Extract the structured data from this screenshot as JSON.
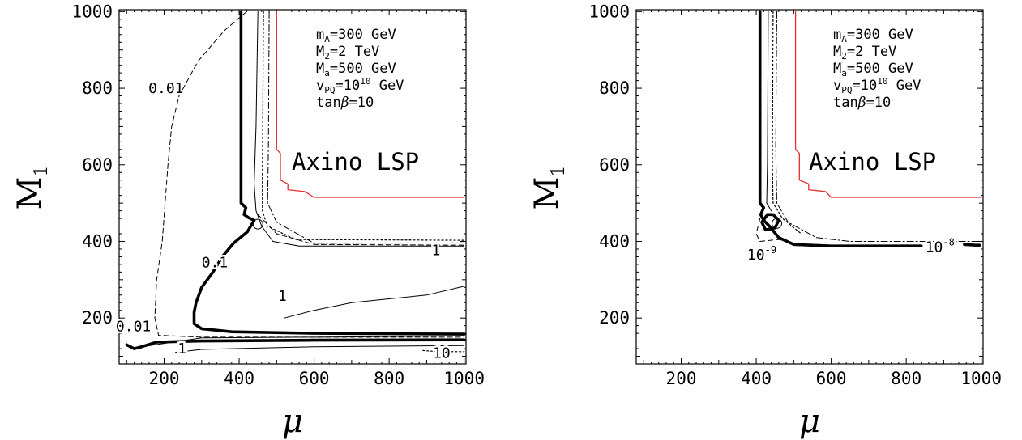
{
  "chart_data": [
    {
      "type": "line",
      "panel": "left",
      "xlabel": "μ",
      "ylabel": "M",
      "ylabel_sub": "1",
      "xlim": [
        80,
        1005
      ],
      "ylim": [
        80,
        1005
      ],
      "xticks": [
        200,
        400,
        600,
        800,
        1000
      ],
      "yticks": [
        200,
        400,
        600,
        800,
        1000
      ],
      "grid": false,
      "annotations": {
        "params": [
          {
            "base": "m",
            "sub": "A",
            "sup": "",
            "rest": "=300 GeV"
          },
          {
            "base": "M",
            "sub": "2",
            "sup": "",
            "rest": "=2 TeV"
          },
          {
            "base": "M",
            "sub": "ã",
            "sup": "",
            "rest": "=500 GeV"
          },
          {
            "base": "v",
            "sub": "PQ",
            "sup": "",
            "rest": "=10^10 GeV"
          },
          {
            "base": "tan",
            "sub": "",
            "sup": "",
            "rest": "β=10"
          }
        ],
        "region_label": "Axino LSP"
      },
      "series": [
        {
          "style": "red",
          "points": [
            [
              500,
              1000
            ],
            [
              500,
              640
            ],
            [
              510,
              630
            ],
            [
              510,
              560
            ],
            [
              530,
              550
            ],
            [
              530,
              535
            ],
            [
              575,
              530
            ],
            [
              600,
              515
            ],
            [
              1000,
              515
            ]
          ]
        },
        {
          "style": "thick",
          "points": [
            [
              405,
              1000
            ],
            [
              405,
              500
            ],
            [
              418,
              488
            ],
            [
              413,
              470
            ],
            [
              425,
              462
            ],
            [
              440,
              455
            ],
            [
              422,
              425
            ],
            [
              385,
              395
            ],
            [
              355,
              360
            ],
            [
              330,
              320
            ],
            [
              300,
              280
            ],
            [
              285,
              240
            ],
            [
              280,
              215
            ],
            [
              280,
              185
            ],
            [
              300,
              172
            ],
            [
              380,
              164
            ],
            [
              600,
              160
            ],
            [
              1000,
              158
            ]
          ]
        },
        {
          "style": "thick",
          "points": [
            [
              100,
              130
            ],
            [
              120,
              120
            ],
            [
              140,
              125
            ],
            [
              180,
              137
            ],
            [
              300,
              140
            ],
            [
              600,
              142
            ],
            [
              1000,
              143
            ]
          ]
        },
        {
          "style": "thin",
          "points": [
            [
              450,
              1000
            ],
            [
              445,
              700
            ],
            [
              440,
              550
            ],
            [
              445,
              480
            ],
            [
              460,
              440
            ],
            [
              490,
              400
            ],
            [
              560,
              388
            ],
            [
              1000,
              388
            ]
          ]
        },
        {
          "style": "thin",
          "points": [
            [
              520,
              200
            ],
            [
              600,
              220
            ],
            [
              700,
              240
            ],
            [
              800,
              250
            ],
            [
              900,
              260
            ],
            [
              1000,
              283
            ]
          ]
        },
        {
          "style": "thin",
          "points": [
            [
              140,
              125
            ],
            [
              300,
              148
            ],
            [
              600,
              150
            ],
            [
              1000,
              153
            ]
          ]
        },
        {
          "style": "thin",
          "points": [
            [
              230,
              110
            ],
            [
              300,
              118
            ],
            [
              600,
              125
            ],
            [
              1000,
              128
            ]
          ]
        },
        {
          "style": "dashed",
          "points": [
            [
              420,
              1000
            ],
            [
              360,
              950
            ],
            [
              290,
              870
            ],
            [
              240,
              780
            ],
            [
              220,
              700
            ],
            [
              210,
              600
            ],
            [
              195,
              400
            ],
            [
              180,
              300
            ],
            [
              175,
              200
            ],
            [
              185,
              155
            ],
            [
              300,
              150
            ],
            [
              1000,
              150
            ]
          ]
        },
        {
          "style": "dashed",
          "points": [
            [
              450,
              470
            ],
            [
              500,
              420
            ],
            [
              600,
              392
            ],
            [
              1000,
              390
            ]
          ]
        },
        {
          "style": "dotted",
          "points": [
            [
              465,
              1000
            ],
            [
              462,
              600
            ],
            [
              462,
              480
            ],
            [
              475,
              440
            ],
            [
              550,
              405
            ],
            [
              1000,
              403
            ]
          ]
        },
        {
          "style": "dotted",
          "points": [
            [
              890,
              115
            ],
            [
              930,
              112
            ],
            [
              1000,
              112
            ]
          ]
        },
        {
          "style": "dashdot",
          "points": [
            [
              480,
              1000
            ],
            [
              478,
              650
            ],
            [
              476,
              500
            ],
            [
              500,
              450
            ],
            [
              600,
              395
            ],
            [
              1000,
              396
            ]
          ]
        }
      ],
      "contour_labels": [
        {
          "text": "0.01",
          "x": 205,
          "y": 800
        },
        {
          "text": "0.1",
          "x": 335,
          "y": 345
        },
        {
          "text": "0.01",
          "x": 118,
          "y": 178
        },
        {
          "text": "1",
          "x": 515,
          "y": 257
        },
        {
          "text": "1",
          "x": 248,
          "y": 120
        },
        {
          "text": "1",
          "x": 925,
          "y": 377
        },
        {
          "text": "10",
          "x": 940,
          "y": 109
        }
      ]
    },
    {
      "type": "line",
      "panel": "right",
      "xlabel": "μ",
      "ylabel": "M",
      "ylabel_sub": "1",
      "xlim": [
        80,
        1005
      ],
      "ylim": [
        80,
        1005
      ],
      "xticks": [
        200,
        400,
        600,
        800,
        1000
      ],
      "yticks": [
        200,
        400,
        600,
        800,
        1000
      ],
      "grid": false,
      "annotations": {
        "params": [
          {
            "base": "m",
            "sub": "A",
            "sup": "",
            "rest": "=300 GeV"
          },
          {
            "base": "M",
            "sub": "2",
            "sup": "",
            "rest": "=2 TeV"
          },
          {
            "base": "M",
            "sub": "ã",
            "sup": "",
            "rest": "=500 GeV"
          },
          {
            "base": "v",
            "sub": "PQ",
            "sup": "",
            "rest": "=10^10 GeV"
          },
          {
            "base": "tan",
            "sub": "",
            "sup": "",
            "rest": "β=10"
          }
        ],
        "region_label": "Axino LSP"
      },
      "series": [
        {
          "style": "red",
          "points": [
            [
              505,
              1000
            ],
            [
              505,
              640
            ],
            [
              515,
              630
            ],
            [
              515,
              560
            ],
            [
              540,
              550
            ],
            [
              540,
              535
            ],
            [
              585,
              530
            ],
            [
              600,
              515
            ],
            [
              1000,
              515
            ]
          ]
        },
        {
          "style": "thick",
          "points": [
            [
              410,
              1000
            ],
            [
              410,
              500
            ],
            [
              420,
              488
            ],
            [
              412,
              470
            ],
            [
              420,
              455
            ],
            [
              435,
              440
            ],
            [
              460,
              410
            ],
            [
              500,
              392
            ],
            [
              600,
              388
            ],
            [
              840,
              388
            ]
          ]
        },
        {
          "style": "thick",
          "points": [
            [
              430,
              470
            ],
            [
              415,
              450
            ],
            [
              425,
              430
            ],
            [
              450,
              435
            ],
            [
              460,
              455
            ],
            [
              445,
              470
            ],
            [
              430,
              470
            ]
          ]
        },
        {
          "style": "thick",
          "points": [
            [
              955,
              392
            ],
            [
              985,
              390
            ],
            [
              995,
              390
            ]
          ]
        },
        {
          "style": "thin",
          "points": [
            [
              432,
              1000
            ],
            [
              430,
              600
            ],
            [
              428,
              500
            ],
            [
              440,
              480
            ]
          ]
        },
        {
          "style": "dotted",
          "points": [
            [
              445,
              1000
            ],
            [
              443,
              600
            ],
            [
              445,
              500
            ],
            [
              470,
              460
            ],
            [
              520,
              420
            ]
          ]
        },
        {
          "style": "dashdot",
          "points": [
            [
              455,
              1000
            ],
            [
              452,
              650
            ],
            [
              455,
              500
            ],
            [
              485,
              450
            ],
            [
              560,
              410
            ],
            [
              650,
              400
            ],
            [
              1000,
              400
            ]
          ]
        },
        {
          "style": "dashed",
          "points": [
            [
              410,
              460
            ],
            [
              400,
              420
            ],
            [
              410,
              400
            ],
            [
              460,
              405
            ],
            [
              500,
              395
            ]
          ]
        }
      ],
      "contour_labels": [
        {
          "text": "10",
          "sup": "-9",
          "x": 415,
          "y": 365
        },
        {
          "text": "10",
          "sup": "-8",
          "x": 890,
          "y": 385
        }
      ]
    }
  ],
  "labels": {
    "tick_x": [
      "200",
      "400",
      "600",
      "800",
      "1000"
    ],
    "tick_y": [
      "200",
      "400",
      "600",
      "800",
      "1000"
    ],
    "mu": "μ",
    "m1_base": "M",
    "m1_sub": "1",
    "left_region": "Axino LSP",
    "right_region": "Axino LSP",
    "left_c1": "0.01",
    "left_c2": "0.1",
    "left_c3": "0.01",
    "left_c4": "1",
    "left_c5": "1",
    "left_c6": "1",
    "left_c7": "10",
    "right_c1": "10",
    "right_c1_sup": "-9",
    "right_c2": "10",
    "right_c2_sup": "-8",
    "p1_base": "m",
    "p1_sub": "A",
    "p1_rest": "=300 GeV",
    "p2_base": "M",
    "p2_sub": "2",
    "p2_rest": "=2 TeV",
    "p3_base": "M",
    "p3_sub": "ã",
    "p3_rest": "=500 GeV",
    "p4_base": "v",
    "p4_sub": "PQ",
    "p4_mid": "=10",
    "p4_sup": "10",
    "p4_rest": " GeV",
    "p5_base": "tan",
    "p5_beta": "β",
    "p5_rest": "=10"
  },
  "colors": {
    "red_contour": "#e03030",
    "ink": "#000000"
  }
}
